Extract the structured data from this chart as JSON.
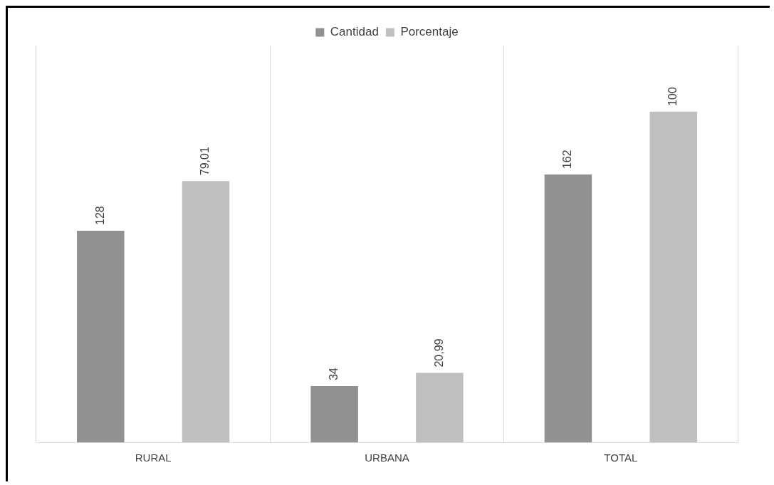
{
  "chart_data": {
    "type": "bar",
    "categories": [
      "RURAL",
      "URBANA",
      "TOTAL"
    ],
    "series": [
      {
        "name": "Cantidad",
        "color": "#919191",
        "values": [
          128,
          34,
          162
        ],
        "value_labels": [
          "128",
          "34",
          "162"
        ]
      },
      {
        "name": "Porcentaje",
        "color": "#bfbfbf",
        "values": [
          79.01,
          20.99,
          100
        ],
        "value_labels": [
          "79,01",
          "20,99",
          "100"
        ],
        "axis": "y2"
      }
    ],
    "ylim": [
      0,
      240
    ],
    "y2lim": [
      0,
      120
    ],
    "tick_labels": "x",
    "grid": "x",
    "legend": "top"
  }
}
